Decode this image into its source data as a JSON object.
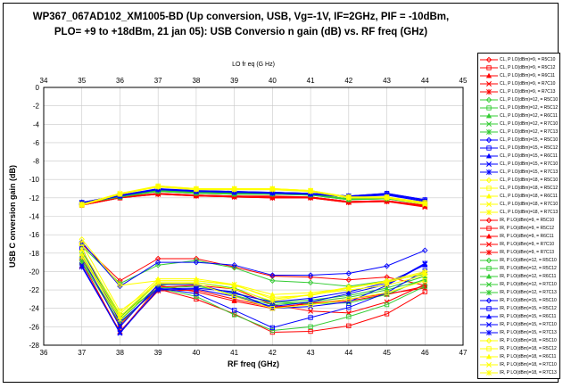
{
  "chart_data": {
    "type": "line",
    "title_line1": "WP367_067AD102_XM1005-BD (Up conversion, USB, Vg=-1V, IF=2GHz, PIF = -10dBm,",
    "title_line2": "PLO= +9 to +18dBm, 21 jan 05):  USB  Conversio n gain (dB) vs. RF  freq (GHz)",
    "xlabel": "RF freq (GHz)",
    "x2label": "LO fr eq (G Hz)",
    "ylabel": "USB C onversion gain (dB)",
    "xlim": [
      36,
      47
    ],
    "x2lim": [
      34,
      45
    ],
    "ylim": [
      -28,
      0
    ],
    "xticks": [
      "36",
      "37",
      "38",
      "39",
      "40",
      "41",
      "42",
      "43",
      "44",
      "45",
      "46",
      "47"
    ],
    "x2ticks": [
      "34",
      "35",
      "36",
      "37",
      "38",
      "39",
      "40",
      "41",
      "42",
      "43",
      "44",
      "45"
    ],
    "yticks": [
      "0",
      "-2",
      "-4",
      "-6",
      "-8",
      "-10",
      "-12",
      "-14",
      "-16",
      "-18",
      "-20",
      "-22",
      "-24",
      "-26",
      "-28"
    ],
    "grid": true,
    "legend_position": "right",
    "x": [
      37,
      38,
      39,
      40,
      41,
      42,
      43,
      44,
      45,
      46
    ],
    "colors": {
      "9": "#ff0000",
      "12": "#33cc33",
      "15": "#0000ff",
      "18": "#ffff00"
    },
    "series": [
      {
        "name": "CL, P LO(dBm)=9, = R5C10",
        "values": [
          -12.8,
          -12.0,
          -11.6,
          -11.8,
          -11.9,
          -12.0,
          -12.0,
          -12.5,
          -12.4,
          -12.9
        ]
      },
      {
        "name": "CL, P LO(dBm)=9, = R5C12",
        "values": [
          -12.8,
          -12.0,
          -11.5,
          -11.7,
          -11.8,
          -11.9,
          -11.9,
          -12.4,
          -12.3,
          -12.8
        ]
      },
      {
        "name": "CL, P LO(dBm)=9, = R6C11",
        "values": [
          -12.7,
          -11.9,
          -11.5,
          -11.7,
          -11.8,
          -11.8,
          -11.9,
          -12.4,
          -12.3,
          -12.8
        ]
      },
      {
        "name": "CL, P LO(dBm)=9, = R7C10",
        "values": [
          -12.8,
          -12.0,
          -11.6,
          -11.8,
          -11.9,
          -12.0,
          -12.0,
          -12.5,
          -12.4,
          -13.0
        ]
      },
      {
        "name": "CL, P LO(dBm)=9, = R7C13",
        "values": [
          -12.7,
          -11.9,
          -11.6,
          -11.7,
          -11.8,
          -11.9,
          -11.9,
          -12.4,
          -12.3,
          -12.9
        ]
      },
      {
        "name": "CL, P LO(dBm)=12, = R5C10",
        "values": [
          -12.6,
          -11.9,
          -11.3,
          -11.5,
          -11.6,
          -11.6,
          -11.7,
          -12.2,
          -12.1,
          -12.6
        ]
      },
      {
        "name": "CL, P LO(dBm)=12, = R5C12",
        "values": [
          -12.6,
          -11.9,
          -11.2,
          -11.4,
          -11.5,
          -11.5,
          -11.6,
          -12.1,
          -12.0,
          -12.6
        ]
      },
      {
        "name": "CL, P LO(dBm)=12, = R6C11",
        "values": [
          -12.5,
          -11.8,
          -11.2,
          -11.4,
          -11.5,
          -11.5,
          -11.6,
          -12.1,
          -12.0,
          -12.5
        ]
      },
      {
        "name": "CL, P LO(dBm)=12, = R7C10",
        "values": [
          -12.6,
          -11.9,
          -11.3,
          -11.5,
          -11.6,
          -11.6,
          -11.7,
          -12.2,
          -12.1,
          -12.7
        ]
      },
      {
        "name": "CL, P LO(dBm)=12, = R7C13",
        "values": [
          -12.5,
          -11.8,
          -11.3,
          -11.4,
          -11.5,
          -11.5,
          -11.6,
          -12.1,
          -12.0,
          -12.6
        ]
      },
      {
        "name": "CL, P LO(dBm)=15, = R5C10",
        "values": [
          -12.6,
          -11.8,
          -11.1,
          -11.3,
          -11.4,
          -11.5,
          -11.6,
          -11.9,
          -11.6,
          -12.3
        ]
      },
      {
        "name": "CL, P LO(dBm)=15, = R5C12",
        "values": [
          -12.5,
          -11.8,
          -11.0,
          -11.3,
          -11.4,
          -11.4,
          -11.5,
          -11.8,
          -11.5,
          -12.2
        ]
      },
      {
        "name": "CL, P LO(dBm)=15, = R6C11",
        "values": [
          -12.5,
          -11.7,
          -11.0,
          -11.2,
          -11.3,
          -11.4,
          -11.5,
          -11.8,
          -11.5,
          -12.2
        ]
      },
      {
        "name": "CL, P LO(dBm)=15, = R7C10",
        "values": [
          -12.6,
          -11.8,
          -11.1,
          -11.3,
          -11.4,
          -11.5,
          -11.6,
          -11.9,
          -11.7,
          -12.4
        ]
      },
      {
        "name": "CL, P LO(dBm)=15, = R7C13",
        "values": [
          -12.5,
          -11.7,
          -11.1,
          -11.2,
          -11.3,
          -11.4,
          -11.5,
          -11.8,
          -11.6,
          -12.3
        ]
      },
      {
        "name": "CL, P LO(dBm)=18, = R5C10",
        "values": [
          -12.8,
          -11.6,
          -10.8,
          -11.1,
          -11.1,
          -11.1,
          -11.3,
          -12.0,
          -12.0,
          -12.6
        ]
      },
      {
        "name": "CL, P LO(dBm)=18, = R5C12",
        "values": [
          -12.7,
          -11.6,
          -10.7,
          -11.0,
          -11.0,
          -11.0,
          -11.2,
          -11.9,
          -11.9,
          -12.5
        ]
      },
      {
        "name": "CL, P LO(dBm)=18, = R6C11",
        "values": [
          -12.7,
          -11.5,
          -10.7,
          -11.0,
          -11.0,
          -11.0,
          -11.2,
          -11.9,
          -11.9,
          -12.5
        ]
      },
      {
        "name": "CL, P LO(dBm)=18, = R7C10",
        "values": [
          -12.8,
          -11.6,
          -10.8,
          -11.1,
          -11.1,
          -11.1,
          -11.3,
          -12.0,
          -12.0,
          -12.7
        ]
      },
      {
        "name": "CL, P LO(dBm)=18, = R7C13",
        "values": [
          -12.7,
          -11.5,
          -10.8,
          -11.0,
          -11.0,
          -11.0,
          -11.2,
          -11.9,
          -11.9,
          -12.6
        ]
      },
      {
        "name": "IR, P LO(dBm)=9, = R5C10",
        "values": [
          -17.0,
          -21.0,
          -18.6,
          -18.6,
          -19.5,
          -20.5,
          -20.6,
          -20.9,
          -20.6,
          -21.5
        ]
      },
      {
        "name": "IR, P LO(dBm)=9, = R5C12",
        "values": [
          -17.5,
          -25.5,
          -21.9,
          -23.0,
          -24.6,
          -26.6,
          -26.5,
          -25.9,
          -24.6,
          -22.2
        ]
      },
      {
        "name": "IR, P LO(dBm)=9, = R6C11",
        "values": [
          -18.5,
          -25.8,
          -21.5,
          -22.2,
          -23.2,
          -24.0,
          -23.4,
          -23.2,
          -22.5,
          -21.6
        ]
      },
      {
        "name": "IR, P LO(dBm)=9, = R7C10",
        "values": [
          -19.0,
          -26.6,
          -21.7,
          -21.5,
          -21.9,
          -23.6,
          -24.3,
          -24.5,
          -23.3,
          -21.4
        ]
      },
      {
        "name": "IR, P LO(dBm)=9, = R7C13",
        "values": [
          -19.4,
          -26.5,
          -22.1,
          -22.0,
          -23.0,
          -23.9,
          -23.5,
          -23.0,
          -22.4,
          -21.8
        ]
      },
      {
        "name": "IR, P LO(dBm)=12, = R5C10",
        "values": [
          -17.2,
          -21.3,
          -19.3,
          -18.8,
          -19.6,
          -21.0,
          -21.2,
          -21.6,
          -21.0,
          -20.3
        ]
      },
      {
        "name": "IR, P LO(dBm)=12, = R5C12",
        "values": [
          -17.8,
          -24.8,
          -21.8,
          -22.7,
          -24.7,
          -26.4,
          -26.0,
          -24.9,
          -23.6,
          -21.6
        ]
      },
      {
        "name": "IR, P LO(dBm)=12, = R6C11",
        "values": [
          -18.2,
          -25.0,
          -21.2,
          -21.4,
          -22.6,
          -23.6,
          -23.3,
          -22.8,
          -22.0,
          -20.9
        ]
      },
      {
        "name": "IR, P LO(dBm)=12, = R7C10",
        "values": [
          -18.8,
          -25.3,
          -21.5,
          -21.2,
          -21.8,
          -23.3,
          -23.5,
          -23.4,
          -22.5,
          -20.8
        ]
      },
      {
        "name": "IR, P LO(dBm)=12, = R7C13",
        "values": [
          -19.0,
          -25.6,
          -21.8,
          -21.6,
          -22.3,
          -23.4,
          -23.1,
          -22.6,
          -21.8,
          -20.5
        ]
      },
      {
        "name": "IR, P LO(dBm)=15, = R5C10",
        "values": [
          -16.8,
          -21.6,
          -19.0,
          -19.0,
          -19.3,
          -20.4,
          -20.4,
          -20.2,
          -19.4,
          -17.7
        ]
      },
      {
        "name": "IR, P LO(dBm)=15, = R5C12",
        "values": [
          -17.5,
          -25.5,
          -21.8,
          -22.4,
          -24.2,
          -26.1,
          -25.0,
          -23.9,
          -22.3,
          -19.9
        ]
      },
      {
        "name": "IR, P LO(dBm)=15, = R6C11",
        "values": [
          -18.4,
          -26.0,
          -21.4,
          -21.4,
          -22.4,
          -23.3,
          -22.9,
          -22.2,
          -21.2,
          -19.3
        ]
      },
      {
        "name": "IR, P LO(dBm)=15, = R7C10",
        "values": [
          -19.3,
          -26.7,
          -21.9,
          -21.8,
          -22.2,
          -24.0,
          -23.8,
          -23.3,
          -21.5,
          -19.2
        ]
      },
      {
        "name": "IR, P LO(dBm)=15, = R7C13",
        "values": [
          -19.5,
          -26.6,
          -22.0,
          -21.9,
          -22.7,
          -23.8,
          -23.3,
          -22.4,
          -21.4,
          -19.1
        ]
      },
      {
        "name": "IR, P LO(dBm)=18, = R5C10",
        "values": [
          -16.5,
          -21.5,
          -21.0,
          -21.0,
          -21.5,
          -22.8,
          -22.6,
          -21.8,
          -21.0,
          -20.0
        ]
      },
      {
        "name": "IR, P LO(dBm)=18, = R5C12",
        "values": [
          -17.0,
          -24.3,
          -21.3,
          -21.3,
          -22.7,
          -24.0,
          -23.6,
          -23.0,
          -22.3,
          -21.0
        ]
      },
      {
        "name": "IR, P LO(dBm)=18, = R6C11",
        "values": [
          -17.6,
          -24.6,
          -20.8,
          -20.8,
          -21.4,
          -22.5,
          -22.3,
          -21.8,
          -21.1,
          -20.2
        ]
      },
      {
        "name": "IR, P LO(dBm)=18, = R7C10",
        "values": [
          -18.1,
          -24.9,
          -21.0,
          -21.0,
          -21.4,
          -23.0,
          -22.5,
          -22.0,
          -21.5,
          -20.4
        ]
      },
      {
        "name": "IR, P LO(dBm)=18, = R7C13",
        "values": [
          -18.4,
          -25.2,
          -21.2,
          -21.2,
          -21.9,
          -23.2,
          -22.5,
          -21.7,
          -21.2,
          -20.1
        ]
      }
    ]
  }
}
